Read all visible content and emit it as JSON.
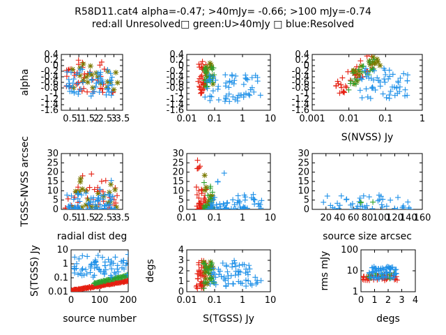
{
  "title": {
    "line1": "R58D11.cat4 alpha=-0.47; >40mJy= -0.66; >100 mJy=-0.74",
    "line2": "red:all Unresolved□ green:U>40mJy □ blue:Resolved"
  },
  "colors": {
    "red": "#e51e10",
    "green": "#2ca02c",
    "olive": "#7a7a00",
    "blue": "#1e90e8"
  },
  "chart_data": [
    {
      "type": "scatter",
      "id": "p1",
      "xlabel": "",
      "ylabel": "alpha",
      "xscale": "linear",
      "xlim": [
        0,
        3.5
      ],
      "xticks": [
        0.5,
        1,
        1.5,
        2,
        2.5,
        3,
        3.5
      ],
      "xticklabels": [
        "0.5",
        "1",
        "1.5",
        "2",
        "2.5",
        "3",
        "3.5"
      ],
      "ylim": [
        -1.6,
        0.4
      ],
      "yticks": [
        0.4,
        0.2,
        0,
        -0.2,
        -0.4,
        -0.6,
        -0.8,
        -1,
        -1.2,
        -1.4,
        -1.6
      ],
      "yticklabels": [
        "0.4",
        "0.2",
        "0",
        "-0.2",
        "-0.4",
        "-0.6",
        "-0.8",
        "-1",
        "-1.2",
        "-1.4",
        "-1.6"
      ],
      "series": [
        {
          "color": "red",
          "marker": "plus",
          "gen": {
            "mode": "box",
            "n": 40,
            "x": [
              0.2,
              3.0
            ],
            "y": [
              -1.0,
              0.2
            ],
            "seed": 11
          }
        },
        {
          "color": "olive",
          "marker": "star",
          "gen": {
            "mode": "box",
            "n": 22,
            "x": [
              0.6,
              3.3
            ],
            "y": [
              -0.9,
              0.1
            ],
            "seed": 12
          }
        },
        {
          "color": "blue",
          "marker": "plus",
          "gen": {
            "mode": "box",
            "n": 55,
            "x": [
              0.3,
              2.9
            ],
            "y": [
              -1.1,
              -0.1
            ],
            "seed": 13
          }
        }
      ]
    },
    {
      "type": "scatter",
      "id": "p2",
      "xlabel": "",
      "ylabel": "",
      "xscale": "log",
      "xlim": [
        0.01,
        10
      ],
      "xticks": [
        0.01,
        0.1,
        1,
        10
      ],
      "xticklabels": [
        "0.01",
        "0.1",
        "1",
        "10"
      ],
      "ylim": [
        -1.6,
        0.4
      ],
      "yticks": [
        0.4,
        0.2,
        0,
        -0.2,
        -0.4,
        -0.6,
        -0.8,
        -1,
        -1.2,
        -1.4,
        -1.6
      ],
      "yticklabels": [
        "0.4",
        "0.2",
        "0",
        "-0.2",
        "-0.4",
        "-0.6",
        "-0.8",
        "-1",
        "-1.2",
        "-1.4",
        "-1.6"
      ],
      "series": [
        {
          "color": "red",
          "marker": "plus",
          "gen": {
            "mode": "box",
            "n": 30,
            "x": [
              0.025,
              0.05
            ],
            "y": [
              -1.0,
              0.2
            ],
            "seed": 21
          }
        },
        {
          "color": "olive",
          "marker": "star",
          "gen": {
            "mode": "box",
            "n": 16,
            "x": [
              0.045,
              0.09
            ],
            "y": [
              -0.8,
              0.1
            ],
            "seed": 22
          }
        },
        {
          "color": "green",
          "marker": "plus",
          "gen": {
            "mode": "box",
            "n": 20,
            "x": [
              0.04,
              0.11
            ],
            "y": [
              -0.8,
              0.0
            ],
            "seed": 23
          }
        },
        {
          "color": "blue",
          "marker": "plus",
          "gen": {
            "mode": "box",
            "n": 60,
            "x": [
              0.04,
              5
            ],
            "y": [
              -1.3,
              -0.3
            ],
            "seed": 24
          }
        }
      ]
    },
    {
      "type": "scatter",
      "id": "p3",
      "xlabel": "S(NVSS) Jy",
      "ylabel": "",
      "xscale": "log",
      "xlim": [
        0.001,
        1
      ],
      "xticks": [
        0.001,
        0.01,
        0.1,
        1
      ],
      "xticklabels": [
        "0.001",
        "0.01",
        "0.1",
        "1"
      ],
      "ylim": [
        -1.6,
        0.4
      ],
      "yticks": [
        0.4,
        0.2,
        0,
        -0.2,
        -0.4,
        -0.6,
        -0.8,
        -1,
        -1.2,
        -1.4,
        -1.6
      ],
      "yticklabels": [
        "0.4",
        "0.2",
        "0",
        "-0.2",
        "-0.4",
        "-0.6",
        "-0.8",
        "-1",
        "-1.2",
        "-1.4",
        "-1.6"
      ],
      "series": [
        {
          "color": "red",
          "marker": "plus",
          "gen": {
            "mode": "trend",
            "n": 35,
            "x": [
              0.004,
              0.05
            ],
            "y0": -1.0,
            "y1": 0.3,
            "spread": 0.35,
            "seed": 31
          }
        },
        {
          "color": "olive",
          "marker": "star",
          "gen": {
            "mode": "trend",
            "n": 18,
            "x": [
              0.01,
              0.08
            ],
            "y0": -0.6,
            "y1": 0.35,
            "spread": 0.3,
            "seed": 32
          }
        },
        {
          "color": "green",
          "marker": "plus",
          "gen": {
            "mode": "trend",
            "n": 20,
            "x": [
              0.008,
              0.06
            ],
            "y0": -0.7,
            "y1": 0.1,
            "spread": 0.3,
            "seed": 33
          }
        },
        {
          "color": "blue",
          "marker": "plus",
          "gen": {
            "mode": "box",
            "n": 55,
            "x": [
              0.02,
              0.4
            ],
            "y": [
              -1.2,
              -0.1
            ],
            "seed": 34
          }
        }
      ]
    },
    {
      "type": "scatter",
      "id": "p4",
      "xlabel": "radial dist deg",
      "ylabel": "TGSS-NVSS arcsec",
      "xscale": "linear",
      "xlim": [
        0,
        3.5
      ],
      "xticks": [
        0.5,
        1,
        1.5,
        2,
        2.5,
        3,
        3.5
      ],
      "xticklabels": [
        "0.5",
        "1",
        "1.5",
        "2",
        "2.5",
        "3",
        "3.5"
      ],
      "ylim": [
        0,
        30
      ],
      "yticks": [
        0,
        5,
        10,
        15,
        20,
        25,
        30
      ],
      "yticklabels": [
        "0",
        "5",
        "10",
        "15",
        "20",
        "25",
        "30"
      ],
      "series": [
        {
          "color": "red",
          "marker": "plus",
          "gen": {
            "mode": "skew",
            "n": 40,
            "x": [
              0.2,
              3.2
            ],
            "y": [
              0,
              12
            ],
            "tail": 0.1,
            "tailmax": 29,
            "seed": 41
          }
        },
        {
          "color": "olive",
          "marker": "star",
          "gen": {
            "mode": "skew",
            "n": 22,
            "x": [
              0.5,
              3.2
            ],
            "y": [
              1,
              12
            ],
            "tail": 0.1,
            "tailmax": 22,
            "seed": 42
          }
        },
        {
          "color": "blue",
          "marker": "plus",
          "gen": {
            "mode": "skew",
            "n": 70,
            "x": [
              0.3,
              3.2
            ],
            "y": [
              0,
              9
            ],
            "tail": 0.06,
            "tailmax": 23,
            "seed": 43
          }
        }
      ]
    },
    {
      "type": "scatter",
      "id": "p5",
      "xlabel": "",
      "ylabel": "",
      "xscale": "log",
      "xlim": [
        0.01,
        10
      ],
      "xticks": [
        0.01,
        0.1,
        1,
        10
      ],
      "xticklabels": [
        "0.01",
        "0.1",
        "1",
        "10"
      ],
      "ylim": [
        0,
        30
      ],
      "yticks": [
        0,
        5,
        10,
        15,
        20,
        25,
        30
      ],
      "yticklabels": [
        "0",
        "5",
        "10",
        "15",
        "20",
        "25",
        "30"
      ],
      "series": [
        {
          "color": "red",
          "marker": "plus",
          "gen": {
            "mode": "skew",
            "n": 40,
            "x": [
              0.022,
              0.05
            ],
            "y": [
              0,
              12
            ],
            "tail": 0.1,
            "tailmax": 29,
            "seed": 51
          }
        },
        {
          "color": "olive",
          "marker": "star",
          "gen": {
            "mode": "skew",
            "n": 16,
            "x": [
              0.04,
              0.09
            ],
            "y": [
              0,
              12
            ],
            "tail": 0.05,
            "tailmax": 20,
            "seed": 52
          }
        },
        {
          "color": "green",
          "marker": "plus",
          "gen": {
            "mode": "skew",
            "n": 22,
            "x": [
              0.04,
              0.1
            ],
            "y": [
              0,
              10
            ],
            "tail": 0.05,
            "tailmax": 16,
            "seed": 53
          }
        },
        {
          "color": "blue",
          "marker": "plus",
          "gen": {
            "mode": "skew",
            "n": 60,
            "x": [
              0.05,
              5
            ],
            "y": [
              0,
              8
            ],
            "tail": 0.08,
            "tailmax": 23,
            "seed": 54
          }
        }
      ]
    },
    {
      "type": "scatter",
      "id": "p6",
      "xlabel": "source size arcsec",
      "ylabel": "",
      "xscale": "linear",
      "xlim": [
        0,
        160
      ],
      "xticks": [
        20,
        40,
        60,
        80,
        100,
        120,
        140,
        160
      ],
      "xticklabels": [
        "20",
        "40",
        "60",
        "80",
        "100",
        "120",
        "140",
        "160"
      ],
      "ylim": [
        0,
        30
      ],
      "yticks": [
        0,
        5,
        10,
        15,
        20,
        25,
        30
      ],
      "yticklabels": [
        "0",
        "5",
        "10",
        "15",
        "20",
        "25",
        "30"
      ],
      "series": [
        {
          "color": "blue",
          "marker": "plus",
          "gen": {
            "mode": "skew",
            "n": 45,
            "x": [
              15,
              150
            ],
            "y": [
              0,
              8
            ],
            "tail": 0.08,
            "tailmax": 30,
            "seed": 61
          }
        },
        {
          "color": "green",
          "marker": "plus",
          "gen": {
            "mode": "box",
            "n": 3,
            "x": [
              60,
              100
            ],
            "y": [
              0,
              4
            ],
            "seed": 62
          }
        }
      ]
    },
    {
      "type": "scatter",
      "id": "p7",
      "xlabel": "source number",
      "ylabel": "S(TGSS) Jy",
      "xscale": "linear",
      "xlim": [
        0,
        200
      ],
      "xticks": [
        0,
        100,
        200
      ],
      "xticklabels": [
        "0",
        "100",
        "200"
      ],
      "yscale": "log",
      "ylim": [
        0.01,
        10
      ],
      "yticks": [
        0.01,
        0.1,
        1,
        10
      ],
      "yticklabels": [
        "0.01",
        "0.1",
        "1",
        "10"
      ],
      "series": [
        {
          "color": "red",
          "marker": "plus",
          "gen": {
            "mode": "sorted",
            "n": 90,
            "x": [
              0,
              200
            ],
            "y0": 0.012,
            "y1": 0.06,
            "spread": 0.1,
            "seed": 71
          }
        },
        {
          "color": "green",
          "marker": "plus",
          "gen": {
            "mode": "sorted",
            "n": 45,
            "x": [
              80,
              200
            ],
            "y0": 0.04,
            "y1": 0.15,
            "spread": 0.1,
            "seed": 72
          }
        },
        {
          "color": "blue",
          "marker": "plus",
          "gen": {
            "mode": "box",
            "n": 70,
            "x": [
              5,
              200
            ],
            "y": [
              0.1,
              5
            ],
            "logy": true,
            "seed": 73
          }
        }
      ]
    },
    {
      "type": "scatter",
      "id": "p8",
      "xlabel": "S(TGSS) Jy",
      "ylabel": "degs",
      "xscale": "log",
      "xlim": [
        0.01,
        10
      ],
      "xticks": [
        0.01,
        0.1,
        1,
        10
      ],
      "xticklabels": [
        "0.01",
        "0.1",
        "1",
        "10"
      ],
      "ylim": [
        0,
        4
      ],
      "yticks": [
        0,
        1,
        2,
        3,
        4
      ],
      "yticklabels": [
        "0",
        "1",
        "2",
        "3",
        "4"
      ],
      "series": [
        {
          "color": "red",
          "marker": "plus",
          "gen": {
            "mode": "box",
            "n": 40,
            "x": [
              0.022,
              0.05
            ],
            "y": [
              0.2,
              3.0
            ],
            "seed": 81
          }
        },
        {
          "color": "olive",
          "marker": "star",
          "gen": {
            "mode": "box",
            "n": 18,
            "x": [
              0.04,
              0.09
            ],
            "y": [
              0.5,
              3.0
            ],
            "seed": 82
          }
        },
        {
          "color": "green",
          "marker": "plus",
          "gen": {
            "mode": "box",
            "n": 22,
            "x": [
              0.04,
              0.1
            ],
            "y": [
              0.3,
              2.9
            ],
            "seed": 83
          }
        },
        {
          "color": "blue",
          "marker": "plus",
          "gen": {
            "mode": "box",
            "n": 60,
            "x": [
              0.06,
              5
            ],
            "y": [
              0.4,
              3.0
            ],
            "seed": 84
          }
        }
      ]
    },
    {
      "type": "scatter",
      "id": "p9",
      "xlabel": "degs",
      "ylabel": "rms mJy",
      "xscale": "linear",
      "xlim": [
        0,
        4
      ],
      "xticks": [
        0,
        1,
        2,
        3,
        4
      ],
      "xticklabels": [
        "0",
        "1",
        "2",
        "3",
        "4"
      ],
      "yscale": "log",
      "ylim": [
        1,
        100
      ],
      "yticks": [
        1,
        10,
        100
      ],
      "yticklabels": [
        "1",
        "10",
        "100"
      ],
      "series": [
        {
          "color": "red",
          "marker": "plus",
          "gen": {
            "mode": "box",
            "n": 45,
            "x": [
              0.1,
              3.0
            ],
            "y": [
              3.5,
              6.5
            ],
            "logy": true,
            "seed": 91
          }
        },
        {
          "color": "green",
          "marker": "plus",
          "gen": {
            "mode": "box",
            "n": 15,
            "x": [
              0.5,
              2.5
            ],
            "y": [
              4,
              8
            ],
            "logy": true,
            "seed": 92
          }
        },
        {
          "color": "blue",
          "marker": "plus",
          "gen": {
            "mode": "box",
            "n": 60,
            "x": [
              0.6,
              2.6
            ],
            "y": [
              4,
              16
            ],
            "logy": true,
            "seed": 93
          }
        }
      ]
    }
  ]
}
